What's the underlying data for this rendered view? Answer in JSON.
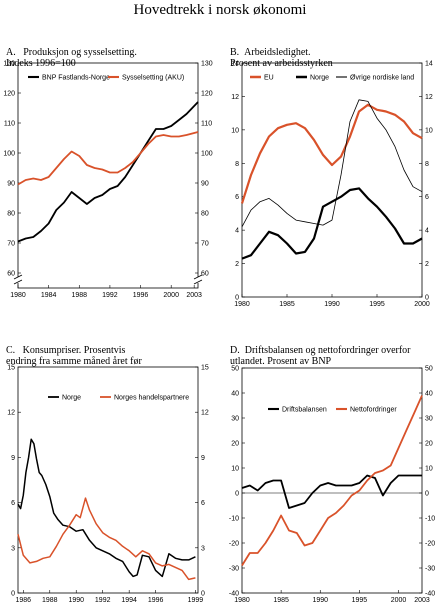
{
  "title": "Hovedtrekk i norsk økonomi",
  "colors": {
    "black": "#000000",
    "orange": "#d9522a"
  },
  "chart_data": [
    {
      "id": "A",
      "type": "line",
      "title": "Produksjon og sysselsetting.\n   Indeks 1996=100",
      "label_letter": "A.",
      "ylim": [
        55,
        130
      ],
      "y_ticks": [
        60,
        70,
        80,
        90,
        100,
        110,
        120,
        130
      ],
      "y_tick_labels": [
        "60",
        "70",
        "80",
        "90",
        "100",
        "110",
        "120",
        "130"
      ],
      "axis_break": true,
      "xlim": [
        1980,
        2003.5
      ],
      "x_ticks": [
        1980,
        1984,
        1988,
        1992,
        1996,
        2000,
        2003
      ],
      "x_tick_labels": [
        "1980",
        "1984",
        "1988",
        "1992",
        "1996",
        "2000",
        "2003"
      ],
      "legend_position": "top",
      "series": [
        {
          "name": "BNP Fastlands-Norge",
          "color": "#000000",
          "width": 1.8,
          "x": [
            1980,
            1981,
            1982,
            1983,
            1984,
            1985,
            1986,
            1987,
            1988,
            1989,
            1990,
            1991,
            1992,
            1993,
            1994,
            1995,
            1996,
            1997,
            1998,
            1999,
            2000,
            2001,
            2002,
            2003.5
          ],
          "y": [
            70.5,
            71.5,
            72,
            74,
            76.5,
            81,
            83.5,
            87,
            85,
            83,
            85,
            86,
            88,
            89,
            92,
            96,
            100,
            104,
            108,
            108,
            109,
            111,
            113,
            117
          ]
        },
        {
          "name": "Sysselsetting (AKU)",
          "color": "#d9522a",
          "width": 1.8,
          "x": [
            1980,
            1981,
            1982,
            1983,
            1984,
            1985,
            1986,
            1987,
            1988,
            1989,
            1990,
            1991,
            1992,
            1993,
            1994,
            1995,
            1996,
            1997,
            1998,
            1999,
            2000,
            2001,
            2002,
            2003.5
          ],
          "y": [
            89.5,
            91,
            91.5,
            91,
            92,
            95,
            98,
            100.5,
            99,
            96,
            95,
            94.5,
            93.5,
            93.5,
            95,
            97,
            100,
            103,
            105.5,
            106,
            105.5,
            105.5,
            106,
            107
          ]
        }
      ]
    },
    {
      "id": "B",
      "type": "line",
      "title": "Arbeidsledighet.\nProsent av arbeidsstyrken",
      "label_letter": "B.",
      "ylim": [
        0,
        14
      ],
      "y_ticks": [
        0,
        2,
        4,
        6,
        8,
        10,
        12,
        14
      ],
      "y_tick_labels": [
        "0",
        "2",
        "4",
        "6",
        "8",
        "10",
        "12",
        "14"
      ],
      "xlim": [
        1980,
        2000
      ],
      "x_ticks": [
        1980,
        1985,
        1990,
        1995,
        2000
      ],
      "x_tick_labels": [
        "1980",
        "1985",
        "1990",
        "1995",
        "2000"
      ],
      "legend_position": "top",
      "series": [
        {
          "name": "EU",
          "color": "#d9522a",
          "width": 2.2,
          "x": [
            1980,
            1981,
            1982,
            1983,
            1984,
            1985,
            1986,
            1987,
            1988,
            1989,
            1990,
            1991,
            1992,
            1993,
            1994,
            1995,
            1996,
            1997,
            1998,
            1999,
            2000
          ],
          "y": [
            5.6,
            7.3,
            8.6,
            9.6,
            10.1,
            10.3,
            10.4,
            10.1,
            9.4,
            8.5,
            7.9,
            8.4,
            9.6,
            11.1,
            11.5,
            11.2,
            11.1,
            10.9,
            10.5,
            9.8,
            9.5
          ]
        },
        {
          "name": "Norge",
          "color": "#000000",
          "width": 2.2,
          "x": [
            1980,
            1981,
            1982,
            1983,
            1984,
            1985,
            1986,
            1987,
            1988,
            1989,
            1990,
            1991,
            1992,
            1993,
            1994,
            1995,
            1996,
            1997,
            1998,
            1999,
            2000
          ],
          "y": [
            2.3,
            2.5,
            3.2,
            3.9,
            3.7,
            3.2,
            2.6,
            2.7,
            3.5,
            5.4,
            5.7,
            6.0,
            6.4,
            6.5,
            5.9,
            5.4,
            4.8,
            4.1,
            3.2,
            3.2,
            3.5
          ]
        },
        {
          "name": "Øvrige nordiske land",
          "color": "#000000",
          "width": 0.8,
          "x": [
            1980,
            1981,
            1982,
            1983,
            1984,
            1985,
            1986,
            1987,
            1988,
            1989,
            1990,
            1991,
            1992,
            1993,
            1994,
            1995,
            1996,
            1997,
            1998,
            1999,
            2000
          ],
          "y": [
            4.2,
            5.2,
            5.7,
            5.9,
            5.5,
            5.0,
            4.6,
            4.5,
            4.4,
            4.3,
            4.6,
            7.3,
            10.5,
            11.8,
            11.7,
            10.7,
            10.0,
            9.0,
            7.6,
            6.6,
            6.3
          ]
        }
      ]
    },
    {
      "id": "C",
      "type": "line",
      "title": "Konsumpriser. Prosentvis\nendring fra samme måned året før",
      "label_letter": "C.",
      "ylim": [
        0,
        15
      ],
      "y_ticks": [
        0,
        3,
        6,
        9,
        12,
        15
      ],
      "y_tick_labels": [
        "0",
        "3",
        "6",
        "9",
        "12",
        "15"
      ],
      "xlim": [
        1985.6,
        1999.2
      ],
      "x_ticks": [
        1986,
        1988,
        1990,
        1992,
        1994,
        1996,
        1999
      ],
      "x_tick_labels": [
        "1986",
        "1988",
        "1990",
        "1992",
        "1994",
        "1996",
        "1999"
      ],
      "legend_position": "top",
      "series": [
        {
          "name": "Norge",
          "color": "#000000",
          "width": 1.5,
          "x": [
            1985.6,
            1985.8,
            1986.0,
            1986.2,
            1986.4,
            1986.6,
            1986.8,
            1987.0,
            1987.2,
            1987.4,
            1987.7,
            1988.0,
            1988.3,
            1988.6,
            1989.0,
            1989.5,
            1990.0,
            1990.5,
            1991.0,
            1991.5,
            1992.0,
            1992.5,
            1993.0,
            1993.5,
            1994.0,
            1994.3,
            1994.6,
            1995.0,
            1995.5,
            1996.0,
            1996.5,
            1997.0,
            1997.5,
            1998.0,
            1998.5,
            1999.0
          ],
          "y": [
            5.9,
            5.6,
            6.5,
            8.0,
            9.0,
            10.2,
            9.9,
            8.9,
            8.0,
            7.8,
            7.2,
            6.4,
            5.3,
            4.9,
            4.5,
            4.4,
            4.1,
            4.2,
            3.5,
            3.0,
            2.8,
            2.6,
            2.3,
            2.1,
            1.4,
            1.1,
            1.2,
            2.5,
            2.4,
            1.5,
            1.1,
            2.6,
            2.3,
            2.2,
            2.2,
            2.4
          ]
        },
        {
          "name": "Norges handelspartnere",
          "color": "#d9522a",
          "width": 1.5,
          "x": [
            1985.6,
            1986.0,
            1986.5,
            1987.0,
            1987.5,
            1988.0,
            1988.5,
            1989.0,
            1989.5,
            1990.0,
            1990.3,
            1990.7,
            1991.0,
            1991.5,
            1992.0,
            1992.5,
            1993.0,
            1993.5,
            1994.0,
            1994.5,
            1995.0,
            1995.5,
            1996.0,
            1996.5,
            1997.0,
            1997.5,
            1998.0,
            1998.5,
            1999.0
          ],
          "y": [
            3.9,
            2.5,
            2.0,
            2.1,
            2.3,
            2.4,
            3.1,
            3.9,
            4.5,
            5.2,
            5.0,
            6.3,
            5.5,
            4.6,
            4.0,
            3.7,
            3.5,
            3.1,
            2.8,
            2.4,
            2.8,
            2.6,
            2.0,
            1.8,
            1.9,
            1.7,
            1.5,
            0.9,
            1.0
          ]
        }
      ]
    },
    {
      "id": "D",
      "type": "line",
      "title": "Driftsbalansen og nettofordringer overfor\nutlandet. Prosent av BNP",
      "label_letter": "D.",
      "ylim": [
        -40,
        50
      ],
      "y_ticks": [
        -40,
        -30,
        -20,
        -10,
        0,
        10,
        20,
        30,
        40,
        50
      ],
      "y_tick_labels": [
        "-40",
        "-30",
        "-20",
        "-10",
        "0",
        "10",
        "20",
        "30",
        "40",
        "50"
      ],
      "xlim": [
        1980,
        2003
      ],
      "x_ticks": [
        1980,
        1985,
        1990,
        1995,
        2000,
        2003
      ],
      "x_tick_labels": [
        "1980",
        "1985",
        "1990",
        "1995",
        "2000",
        "2003"
      ],
      "legend_position": "top",
      "series": [
        {
          "name": "Driftsbalansen",
          "color": "#000000",
          "width": 1.8,
          "x": [
            1980,
            1981,
            1982,
            1983,
            1984,
            1985,
            1986,
            1987,
            1988,
            1989,
            1990,
            1991,
            1992,
            1993,
            1994,
            1995,
            1996,
            1997,
            1998,
            1999,
            2000,
            2001,
            2002,
            2003
          ],
          "y": [
            2,
            3,
            1,
            4,
            5,
            5,
            -6,
            -5,
            -4,
            0,
            3,
            4,
            3,
            3,
            3,
            4,
            7,
            6,
            -1,
            4,
            7,
            7,
            7,
            7
          ]
        },
        {
          "name": "Nettofordringer",
          "color": "#d9522a",
          "width": 1.8,
          "x": [
            1980,
            1981,
            1982,
            1983,
            1984,
            1985,
            1986,
            1987,
            1988,
            1989,
            1990,
            1991,
            1992,
            1993,
            1994,
            1995,
            1996,
            1997,
            1998,
            1999,
            2000,
            2001,
            2002,
            2003
          ],
          "y": [
            -29,
            -24,
            -24,
            -20,
            -15,
            -9,
            -15,
            -16,
            -21,
            -20,
            -15,
            -10,
            -8,
            -5,
            -1,
            1,
            5,
            8,
            9,
            11,
            18,
            25,
            32,
            39
          ]
        }
      ]
    }
  ]
}
